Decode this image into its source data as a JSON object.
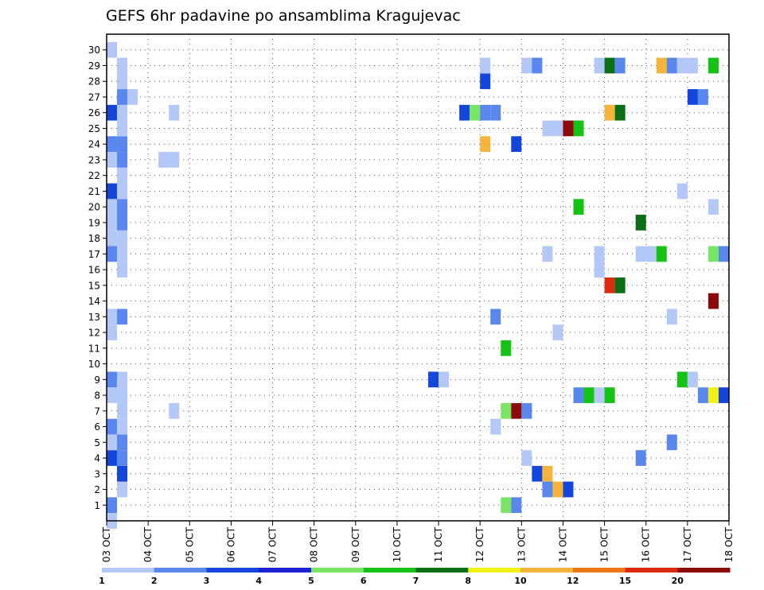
{
  "chart_data": {
    "type": "heatmap",
    "title": "GEFS 6hr padavine po ansamblima Kragujevac",
    "xlabel": "",
    "ylabel": "",
    "x_ticks": [
      "03 OCT",
      "04 OCT",
      "05 OCT",
      "06 OCT",
      "07 OCT",
      "08 OCT",
      "09 OCT",
      "10 OCT",
      "11 OCT",
      "12 OCT",
      "13 OCT",
      "14 OCT",
      "15 OCT",
      "16 OCT",
      "17 OCT",
      "18 OCT"
    ],
    "y_ticks": [
      "1",
      "2",
      "3",
      "4",
      "5",
      "6",
      "7",
      "8",
      "9",
      "10",
      "11",
      "12",
      "13",
      "14",
      "15",
      "16",
      "17",
      "18",
      "19",
      "20",
      "21",
      "22",
      "23",
      "24",
      "25",
      "26",
      "27",
      "28",
      "29",
      "30"
    ],
    "xlim": [
      0,
      60
    ],
    "ylim": [
      0,
      31
    ],
    "grid": true,
    "colorbar": {
      "labels": [
        "1",
        "2",
        "3",
        "4",
        "5",
        "6",
        "7",
        "8",
        "10",
        "12",
        "15",
        "20"
      ],
      "colors": [
        "#b4c8f8",
        "#5a87ee",
        "#1446dc",
        "#1e1ed2",
        "#78e664",
        "#14c314",
        "#0a6e14",
        "#f0f014",
        "#f5b43c",
        "#f07814",
        "#dc2a10",
        "#8c0a0a"
      ]
    },
    "cells": [
      [
        0.5,
        0,
        0
      ],
      [
        0.5,
        30,
        0
      ],
      [
        0.5,
        1,
        1
      ],
      [
        1.5,
        2,
        0
      ],
      [
        1.5,
        3,
        2
      ],
      [
        0.5,
        4,
        2
      ],
      [
        1.5,
        4,
        1
      ],
      [
        0.5,
        5,
        0
      ],
      [
        1.5,
        5,
        1
      ],
      [
        0.5,
        6,
        1
      ],
      [
        1.5,
        6,
        0
      ],
      [
        1.5,
        7,
        0
      ],
      [
        0.5,
        8,
        0
      ],
      [
        1.5,
        8,
        0
      ],
      [
        0.5,
        9,
        1
      ],
      [
        1.5,
        9,
        0
      ],
      [
        0.5,
        12,
        0
      ],
      [
        0.5,
        13,
        0
      ],
      [
        1.5,
        13,
        1
      ],
      [
        0.5,
        17,
        1
      ],
      [
        1.5,
        17,
        0
      ],
      [
        1.5,
        16,
        0
      ],
      [
        0.5,
        18,
        0
      ],
      [
        1.5,
        18,
        0
      ],
      [
        0.5,
        19,
        0
      ],
      [
        1.5,
        19,
        1
      ],
      [
        0.5,
        20,
        0
      ],
      [
        1.5,
        20,
        1
      ],
      [
        0.5,
        21,
        2
      ],
      [
        1.5,
        21,
        0
      ],
      [
        1.5,
        22,
        0
      ],
      [
        0.5,
        23,
        0
      ],
      [
        1.5,
        23,
        1
      ],
      [
        0.5,
        24,
        1
      ],
      [
        1.5,
        24,
        1
      ],
      [
        1.5,
        25,
        0
      ],
      [
        0.5,
        26,
        2
      ],
      [
        1.5,
        26,
        0
      ],
      [
        1.5,
        27,
        1
      ],
      [
        2.5,
        27,
        0
      ],
      [
        1.5,
        28,
        0
      ],
      [
        1.5,
        29,
        0
      ],
      [
        6.5,
        7,
        0
      ],
      [
        6.5,
        26,
        0
      ],
      [
        5.5,
        23,
        0
      ],
      [
        6.5,
        23,
        0
      ],
      [
        31.5,
        9,
        2
      ],
      [
        32.5,
        9,
        0
      ],
      [
        34.5,
        26,
        2
      ],
      [
        35.5,
        26,
        4
      ],
      [
        36.5,
        26,
        1
      ],
      [
        37.5,
        26,
        1
      ],
      [
        36.5,
        28,
        2
      ],
      [
        36.5,
        29,
        0
      ],
      [
        36.5,
        24,
        8
      ],
      [
        39.5,
        24,
        2
      ],
      [
        37.5,
        13,
        1
      ],
      [
        37.5,
        6,
        0
      ],
      [
        38.5,
        7,
        4
      ],
      [
        38.5,
        1,
        4
      ],
      [
        38.5,
        11,
        5
      ],
      [
        39.5,
        7,
        11
      ],
      [
        39.5,
        1,
        1
      ],
      [
        40.5,
        7,
        1
      ],
      [
        40.5,
        4,
        0
      ],
      [
        40.5,
        29,
        0
      ],
      [
        41.5,
        29,
        1
      ],
      [
        41.5,
        3,
        2
      ],
      [
        42.5,
        3,
        8
      ],
      [
        42.5,
        2,
        1
      ],
      [
        43.5,
        2,
        8
      ],
      [
        44.5,
        2,
        2
      ],
      [
        42.5,
        25,
        0
      ],
      [
        43.5,
        25,
        0
      ],
      [
        44.5,
        25,
        11
      ],
      [
        45.5,
        25,
        5
      ],
      [
        42.5,
        17,
        0
      ],
      [
        43.5,
        12,
        0
      ],
      [
        45.5,
        8,
        1
      ],
      [
        46.5,
        8,
        5
      ],
      [
        45.5,
        20,
        5
      ],
      [
        47.5,
        8,
        0
      ],
      [
        48.5,
        8,
        5
      ],
      [
        47.5,
        29,
        0
      ],
      [
        48.5,
        29,
        6
      ],
      [
        49.5,
        29,
        1
      ],
      [
        47.5,
        17,
        0
      ],
      [
        47.5,
        16,
        0
      ],
      [
        48.5,
        26,
        8
      ],
      [
        49.5,
        26,
        6
      ],
      [
        48.5,
        15,
        10
      ],
      [
        49.5,
        15,
        6
      ],
      [
        51.5,
        17,
        0
      ],
      [
        52.5,
        17,
        0
      ],
      [
        53.5,
        17,
        5
      ],
      [
        51.5,
        19,
        6
      ],
      [
        51.5,
        4,
        1
      ],
      [
        53.5,
        29,
        8
      ],
      [
        54.5,
        29,
        1
      ],
      [
        55.5,
        29,
        0
      ],
      [
        56.5,
        29,
        0
      ],
      [
        55.5,
        21,
        0
      ],
      [
        54.5,
        13,
        0
      ],
      [
        54.5,
        5,
        1
      ],
      [
        55.5,
        9,
        5
      ],
      [
        56.5,
        9,
        0
      ],
      [
        56.5,
        27,
        2
      ],
      [
        57.5,
        27,
        1
      ],
      [
        57.5,
        8,
        1
      ],
      [
        58.5,
        8,
        7
      ],
      [
        59.5,
        8,
        2
      ],
      [
        58.5,
        29,
        5
      ],
      [
        58.5,
        20,
        0
      ],
      [
        58.5,
        14,
        11
      ],
      [
        58.5,
        17,
        4
      ],
      [
        59.5,
        17,
        1
      ]
    ]
  }
}
